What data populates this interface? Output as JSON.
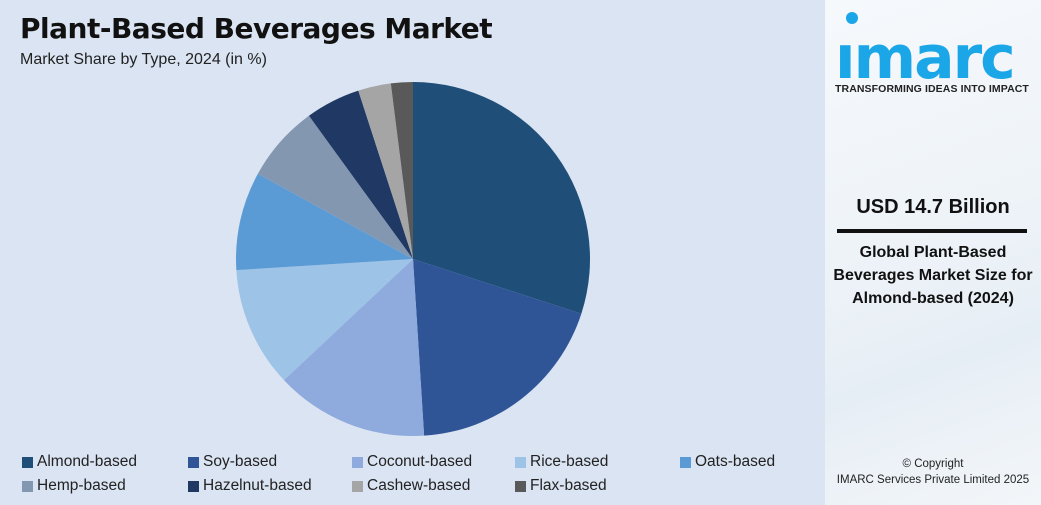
{
  "header": {
    "title": "Plant-Based Beverages Market",
    "subtitle": "Market Share by Type, 2024 (in %)"
  },
  "chart_data": {
    "type": "pie",
    "title": "Plant-Based Beverages Market",
    "subtitle": "Market Share by Type, 2024 (in %)",
    "categories": [
      "Almond-based",
      "Soy-based",
      "Coconut-based",
      "Rice-based",
      "Oats-based",
      "Hemp-based",
      "Hazelnut-based",
      "Cashew-based",
      "Flax-based"
    ],
    "values": [
      30,
      19,
      14,
      11,
      9,
      7,
      5,
      3,
      2
    ],
    "colors": [
      "#1f4e79",
      "#2f5597",
      "#8faadc",
      "#9dc3e6",
      "#5b9bd5",
      "#8497b0",
      "#203864",
      "#a5a5a5",
      "#595959"
    ],
    "legend": "bottom"
  },
  "side": {
    "logo_text": "imarc",
    "tagline": "TRANSFORMING IDEAS INTO IMPACT",
    "value": "USD 14.7 Billion",
    "description": "Global Plant-Based Beverages Market Size for Almond-based (2024)",
    "copyright_line1": "© Copyright",
    "copyright_line2": "IMARC Services Private Limited 2025",
    "brand_color": "#1ba6e8"
  }
}
